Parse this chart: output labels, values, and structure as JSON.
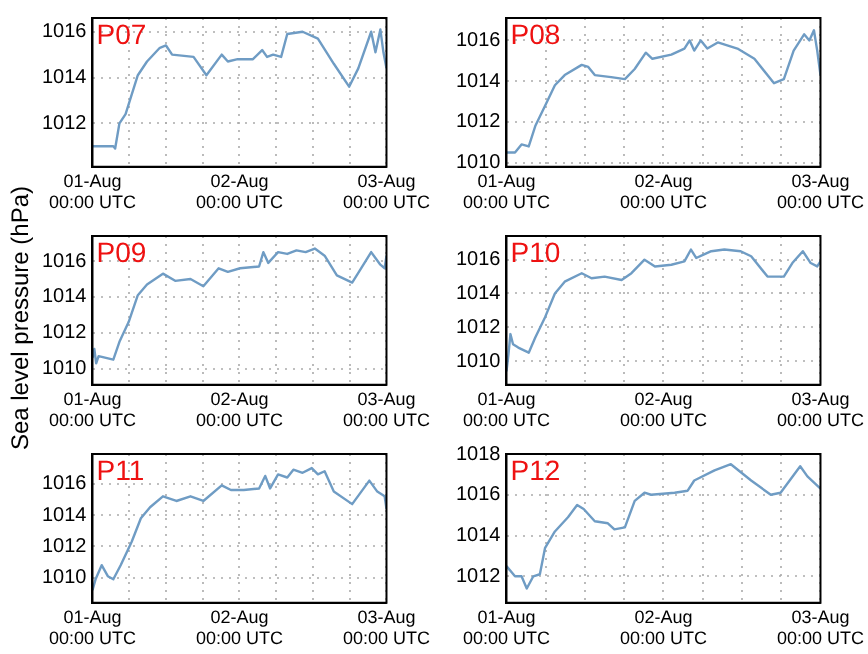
{
  "chart_data": [
    {
      "type": "line",
      "title": "P07",
      "x": [
        "--08-01T00:00",
        "--08-01T03:24",
        "--08-01T03:42",
        "--08-01T04:24",
        "--08-01T05:24",
        "--08-01T07:24",
        "--08-01T08:54",
        "--08-01T11:00",
        "--08-01T12:00",
        "--08-01T13:00",
        "--08-01T16:30",
        "--08-01T18:36",
        "--08-01T21:06",
        "--08-01T22:06",
        "--08-01T23:42",
        "--08-02T02:12",
        "--08-02T03:42",
        "--08-02T04:30",
        "--08-02T05:30",
        "--08-02T06:48",
        "--08-02T07:48",
        "--08-02T10:18",
        "--08-02T12:48",
        "--08-02T15:24",
        "--08-02T17:54",
        "--08-02T19:24",
        "--08-02T21:30",
        "--08-02T22:12",
        "--08-02T23:00",
        "--08-02T23:30",
        "--08-03T00:00"
      ],
      "series": [
        {
          "color": "#6f9cc4",
          "values": [
            1011.0,
            1011.0,
            1010.9,
            1012.0,
            1012.4,
            1014.1,
            1014.7,
            1015.3,
            1015.4,
            1015.0,
            1014.9,
            1014.1,
            1015.0,
            1014.7,
            1014.8,
            1014.8,
            1015.2,
            1014.9,
            1015.0,
            1014.9,
            1015.9,
            1016.0,
            1015.7,
            1014.6,
            1013.6,
            1014.4,
            1016.0,
            1015.1,
            1016.1,
            1015.1,
            1014.4
          ]
        }
      ],
      "xlim": [
        "--08-01T00:00",
        "--08-03T00:00"
      ],
      "xticks": [
        {
          "value": "--08-01T00:00",
          "label": "01-Aug\n00:00 UTC"
        },
        {
          "value": "--08-01T06:00",
          "label": null
        },
        {
          "value": "--08-01T12:00",
          "label": null
        },
        {
          "value": "--08-01T18:00",
          "label": null
        },
        {
          "value": "--08-02T00:00",
          "label": "02-Aug\n00:00 UTC"
        },
        {
          "value": "--08-02T06:00",
          "label": null
        },
        {
          "value": "--08-02T12:00",
          "label": null
        },
        {
          "value": "--08-02T18:00",
          "label": null
        },
        {
          "value": "--08-03T00:00",
          "label": "03-Aug\n00:00 UTC"
        }
      ],
      "ylim": [
        1010.1,
        1016.6
      ],
      "yticks": [
        1012,
        1014,
        1016
      ],
      "grid": true,
      "marker": "none",
      "line_style": "solid"
    },
    {
      "type": "line",
      "title": "P08",
      "x": [
        "--08-01T00:00",
        "--08-01T01:18",
        "--08-01T02:18",
        "--08-01T03:24",
        "--08-01T04:24",
        "--08-01T05:54",
        "--08-01T07:24",
        "--08-01T08:54",
        "--08-01T11:30",
        "--08-01T12:30",
        "--08-01T13:30",
        "--08-01T16:00",
        "--08-01T18:06",
        "--08-01T19:36",
        "--08-01T21:18",
        "--08-01T22:18",
        "--08-02T01:12",
        "--08-02T03:12",
        "--08-02T04:00",
        "--08-02T04:42",
        "--08-02T05:42",
        "--08-02T06:42",
        "--08-02T08:18",
        "--08-02T11:18",
        "--08-02T13:54",
        "--08-02T16:54",
        "--08-02T18:24",
        "--08-02T19:54",
        "--08-02T21:30",
        "--08-02T22:18",
        "--08-02T23:00",
        "--08-02T23:30",
        "--08-03T00:00"
      ],
      "series": [
        {
          "color": "#6f9cc4",
          "values": [
            1010.5,
            1010.5,
            1010.9,
            1010.8,
            1011.8,
            1012.8,
            1013.8,
            1014.3,
            1014.8,
            1014.7,
            1014.3,
            1014.2,
            1014.1,
            1014.6,
            1015.4,
            1015.1,
            1015.3,
            1015.6,
            1016.0,
            1015.5,
            1016.0,
            1015.6,
            1015.9,
            1015.6,
            1015.1,
            1013.9,
            1014.1,
            1015.5,
            1016.3,
            1016.0,
            1016.5,
            1015.5,
            1014.3
          ]
        }
      ],
      "xlim": [
        "--08-01T00:00",
        "--08-03T00:00"
      ],
      "xticks": [
        {
          "value": "--08-01T00:00",
          "label": "01-Aug\n00:00 UTC"
        },
        {
          "value": "--08-01T06:00",
          "label": null
        },
        {
          "value": "--08-01T12:00",
          "label": null
        },
        {
          "value": "--08-01T18:00",
          "label": null
        },
        {
          "value": "--08-02T00:00",
          "label": "02-Aug\n00:00 UTC"
        },
        {
          "value": "--08-02T06:00",
          "label": null
        },
        {
          "value": "--08-02T12:00",
          "label": null
        },
        {
          "value": "--08-02T18:00",
          "label": null
        },
        {
          "value": "--08-03T00:00",
          "label": "03-Aug\n00:00 UTC"
        }
      ],
      "ylim": [
        1009.8,
        1017.1
      ],
      "yticks": [
        1010,
        1012,
        1014,
        1016
      ],
      "grid": true,
      "marker": "none",
      "line_style": "solid"
    },
    {
      "type": "line",
      "title": "P09",
      "ylabel": "Sea level pressure (hPa)",
      "x": [
        "--08-01T00:00",
        "--08-01T00:18",
        "--08-01T00:36",
        "--08-01T01:00",
        "--08-01T03:24",
        "--08-01T04:24",
        "--08-01T05:54",
        "--08-01T07:24",
        "--08-01T08:54",
        "--08-01T11:30",
        "--08-01T13:30",
        "--08-01T16:00",
        "--08-01T18:06",
        "--08-01T20:36",
        "--08-01T22:06",
        "--08-02T00:06",
        "--08-02T03:12",
        "--08-02T03:54",
        "--08-02T04:42",
        "--08-02T06:18",
        "--08-02T07:48",
        "--08-02T09:18",
        "--08-02T10:48",
        "--08-02T12:18",
        "--08-02T13:54",
        "--08-02T15:54",
        "--08-02T18:24",
        "--08-02T19:30",
        "--08-02T21:30",
        "--08-02T23:00",
        "--08-02T23:42",
        "--08-03T00:00"
      ],
      "series": [
        {
          "color": "#6f9cc4",
          "values": [
            1010.6,
            1011.1,
            1010.3,
            1010.7,
            1010.5,
            1011.5,
            1012.6,
            1014.1,
            1014.7,
            1015.3,
            1014.9,
            1015.0,
            1014.6,
            1015.6,
            1015.4,
            1015.6,
            1015.7,
            1016.5,
            1015.9,
            1016.5,
            1016.4,
            1016.6,
            1016.5,
            1016.7,
            1016.3,
            1015.2,
            1014.8,
            1015.4,
            1016.5,
            1015.8,
            1015.6,
            1016.3
          ]
        }
      ],
      "xlim": [
        "--08-01T00:00",
        "--08-03T00:00"
      ],
      "xticks": [
        {
          "value": "--08-01T00:00",
          "label": "01-Aug\n00:00 UTC"
        },
        {
          "value": "--08-01T06:00",
          "label": null
        },
        {
          "value": "--08-01T12:00",
          "label": null
        },
        {
          "value": "--08-01T18:00",
          "label": null
        },
        {
          "value": "--08-02T00:00",
          "label": "02-Aug\n00:00 UTC"
        },
        {
          "value": "--08-02T06:00",
          "label": null
        },
        {
          "value": "--08-02T12:00",
          "label": null
        },
        {
          "value": "--08-02T18:00",
          "label": null
        },
        {
          "value": "--08-03T00:00",
          "label": "03-Aug\n00:00 UTC"
        }
      ],
      "ylim": [
        1009.1,
        1017.4
      ],
      "yticks": [
        1010,
        1012,
        1014,
        1016
      ],
      "grid": true,
      "marker": "none",
      "line_style": "solid"
    },
    {
      "type": "line",
      "title": "P10",
      "x": [
        "--08-01T00:00",
        "--08-01T00:18",
        "--08-01T00:36",
        "--08-01T01:00",
        "--08-01T01:48",
        "--08-01T03:24",
        "--08-01T04:24",
        "--08-01T05:54",
        "--08-01T07:24",
        "--08-01T08:54",
        "--08-01T11:30",
        "--08-01T13:00",
        "--08-01T15:00",
        "--08-01T17:36",
        "--08-01T19:06",
        "--08-01T21:06",
        "--08-01T22:42",
        "--08-02T01:12",
        "--08-02T03:12",
        "--08-02T04:12",
        "--08-02T05:00",
        "--08-02T07:18",
        "--08-02T09:18",
        "--08-02T11:48",
        "--08-02T13:24",
        "--08-02T15:54",
        "--08-02T18:24",
        "--08-02T19:42",
        "--08-02T21:18",
        "--08-02T22:30",
        "--08-02T23:30",
        "--08-03T00:00"
      ],
      "series": [
        {
          "color": "#6f9cc4",
          "values": [
            1009.4,
            1010.4,
            1011.6,
            1011.0,
            1010.8,
            1010.5,
            1011.4,
            1012.6,
            1014.0,
            1014.7,
            1015.2,
            1014.9,
            1015.0,
            1014.8,
            1015.2,
            1016.0,
            1015.6,
            1015.7,
            1015.9,
            1016.6,
            1016.1,
            1016.5,
            1016.6,
            1016.5,
            1016.2,
            1015.0,
            1015.0,
            1015.8,
            1016.5,
            1015.8,
            1015.6,
            1015.9
          ]
        }
      ],
      "xlim": [
        "--08-01T00:00",
        "--08-03T00:00"
      ],
      "xticks": [
        {
          "value": "--08-01T00:00",
          "label": "01-Aug\n00:00 UTC"
        },
        {
          "value": "--08-01T06:00",
          "label": null
        },
        {
          "value": "--08-01T12:00",
          "label": null
        },
        {
          "value": "--08-01T18:00",
          "label": null
        },
        {
          "value": "--08-02T00:00",
          "label": "02-Aug\n00:00 UTC"
        },
        {
          "value": "--08-02T06:00",
          "label": null
        },
        {
          "value": "--08-02T12:00",
          "label": null
        },
        {
          "value": "--08-02T18:00",
          "label": null
        },
        {
          "value": "--08-03T00:00",
          "label": "03-Aug\n00:00 UTC"
        }
      ],
      "ylim": [
        1008.6,
        1017.4
      ],
      "yticks": [
        1010,
        1012,
        1014,
        1016
      ],
      "grid": true,
      "marker": "none",
      "line_style": "solid"
    },
    {
      "type": "line",
      "title": "P11",
      "x": [
        "--08-01T00:00",
        "--08-01T00:30",
        "--08-01T01:30",
        "--08-01T02:30",
        "--08-01T03:24",
        "--08-01T04:36",
        "--08-01T06:24",
        "--08-01T07:54",
        "--08-01T09:24",
        "--08-01T11:30",
        "--08-01T13:42",
        "--08-01T16:00",
        "--08-01T18:06",
        "--08-01T21:06",
        "--08-01T22:36",
        "--08-02T00:42",
        "--08-02T03:12",
        "--08-02T04:12",
        "--08-02T05:00",
        "--08-02T06:18",
        "--08-02T07:48",
        "--08-02T08:48",
        "--08-02T10:18",
        "--08-02T11:48",
        "--08-02T12:48",
        "--08-02T13:54",
        "--08-02T15:24",
        "--08-02T18:24",
        "--08-02T21:12",
        "--08-02T22:30",
        "--08-02T23:42",
        "--08-03T00:00"
      ],
      "series": [
        {
          "color": "#6f9cc4",
          "values": [
            1009.2,
            1009.9,
            1010.8,
            1010.1,
            1009.9,
            1010.8,
            1012.3,
            1013.8,
            1014.5,
            1015.2,
            1014.9,
            1015.2,
            1014.9,
            1015.9,
            1015.6,
            1015.6,
            1015.7,
            1016.5,
            1015.7,
            1016.6,
            1016.4,
            1016.9,
            1016.7,
            1017.0,
            1016.6,
            1016.8,
            1015.5,
            1014.7,
            1016.2,
            1015.5,
            1015.2,
            1014.4
          ]
        }
      ],
      "xlim": [
        "--08-01T00:00",
        "--08-03T00:00"
      ],
      "xticks": [
        {
          "value": "--08-01T00:00",
          "label": "01-Aug\n00:00 UTC"
        },
        {
          "value": "--08-01T06:00",
          "label": null
        },
        {
          "value": "--08-01T12:00",
          "label": null
        },
        {
          "value": "--08-01T18:00",
          "label": null
        },
        {
          "value": "--08-02T00:00",
          "label": "02-Aug\n00:00 UTC"
        },
        {
          "value": "--08-02T06:00",
          "label": null
        },
        {
          "value": "--08-02T12:00",
          "label": null
        },
        {
          "value": "--08-02T18:00",
          "label": null
        },
        {
          "value": "--08-03T00:00",
          "label": "03-Aug\n00:00 UTC"
        }
      ],
      "ylim": [
        1008.4,
        1017.9
      ],
      "yticks": [
        1010,
        1012,
        1014,
        1016
      ],
      "grid": true,
      "marker": "none",
      "line_style": "solid"
    },
    {
      "type": "line",
      "title": "P12",
      "x": [
        "--08-01T00:00",
        "--08-01T01:18",
        "--08-01T02:18",
        "--08-01T03:06",
        "--08-01T04:06",
        "--08-01T05:06",
        "--08-01T05:54",
        "--08-01T07:24",
        "--08-01T09:24",
        "--08-01T10:48",
        "--08-01T11:48",
        "--08-01T13:30",
        "--08-01T15:30",
        "--08-01T16:30",
        "--08-01T18:06",
        "--08-01T19:36",
        "--08-01T21:06",
        "--08-01T22:06",
        "--08-02T01:42",
        "--08-02T03:42",
        "--08-02T04:42",
        "--08-02T07:48",
        "--08-02T10:18",
        "--08-02T13:24",
        "--08-02T16:24",
        "--08-02T17:54",
        "--08-02T20:54",
        "--08-02T22:00",
        "--08-03T00:00"
      ],
      "series": [
        {
          "color": "#6f9cc4",
          "values": [
            1012.5,
            1012.0,
            1012.0,
            1011.4,
            1012.0,
            1012.1,
            1013.4,
            1014.2,
            1014.9,
            1015.5,
            1015.3,
            1014.7,
            1014.6,
            1014.3,
            1014.4,
            1015.7,
            1016.1,
            1016.0,
            1016.1,
            1016.2,
            1016.7,
            1017.2,
            1017.5,
            1016.7,
            1016.0,
            1016.1,
            1017.4,
            1016.9,
            1016.3
          ]
        }
      ],
      "xlim": [
        "--08-01T00:00",
        "--08-03T00:00"
      ],
      "xticks": [
        {
          "value": "--08-01T00:00",
          "label": "01-Aug\n00:00 UTC"
        },
        {
          "value": "--08-01T06:00",
          "label": null
        },
        {
          "value": "--08-01T12:00",
          "label": null
        },
        {
          "value": "--08-01T18:00",
          "label": null
        },
        {
          "value": "--08-02T00:00",
          "label": "02-Aug\n00:00 UTC"
        },
        {
          "value": "--08-02T06:00",
          "label": null
        },
        {
          "value": "--08-02T12:00",
          "label": null
        },
        {
          "value": "--08-02T18:00",
          "label": null
        },
        {
          "value": "--08-03T00:00",
          "label": "03-Aug\n00:00 UTC"
        }
      ],
      "ylim": [
        1010.7,
        1018
      ],
      "yticks": [
        1012,
        1014,
        1016,
        1018
      ],
      "grid": true,
      "marker": "none",
      "line_style": "solid"
    }
  ]
}
